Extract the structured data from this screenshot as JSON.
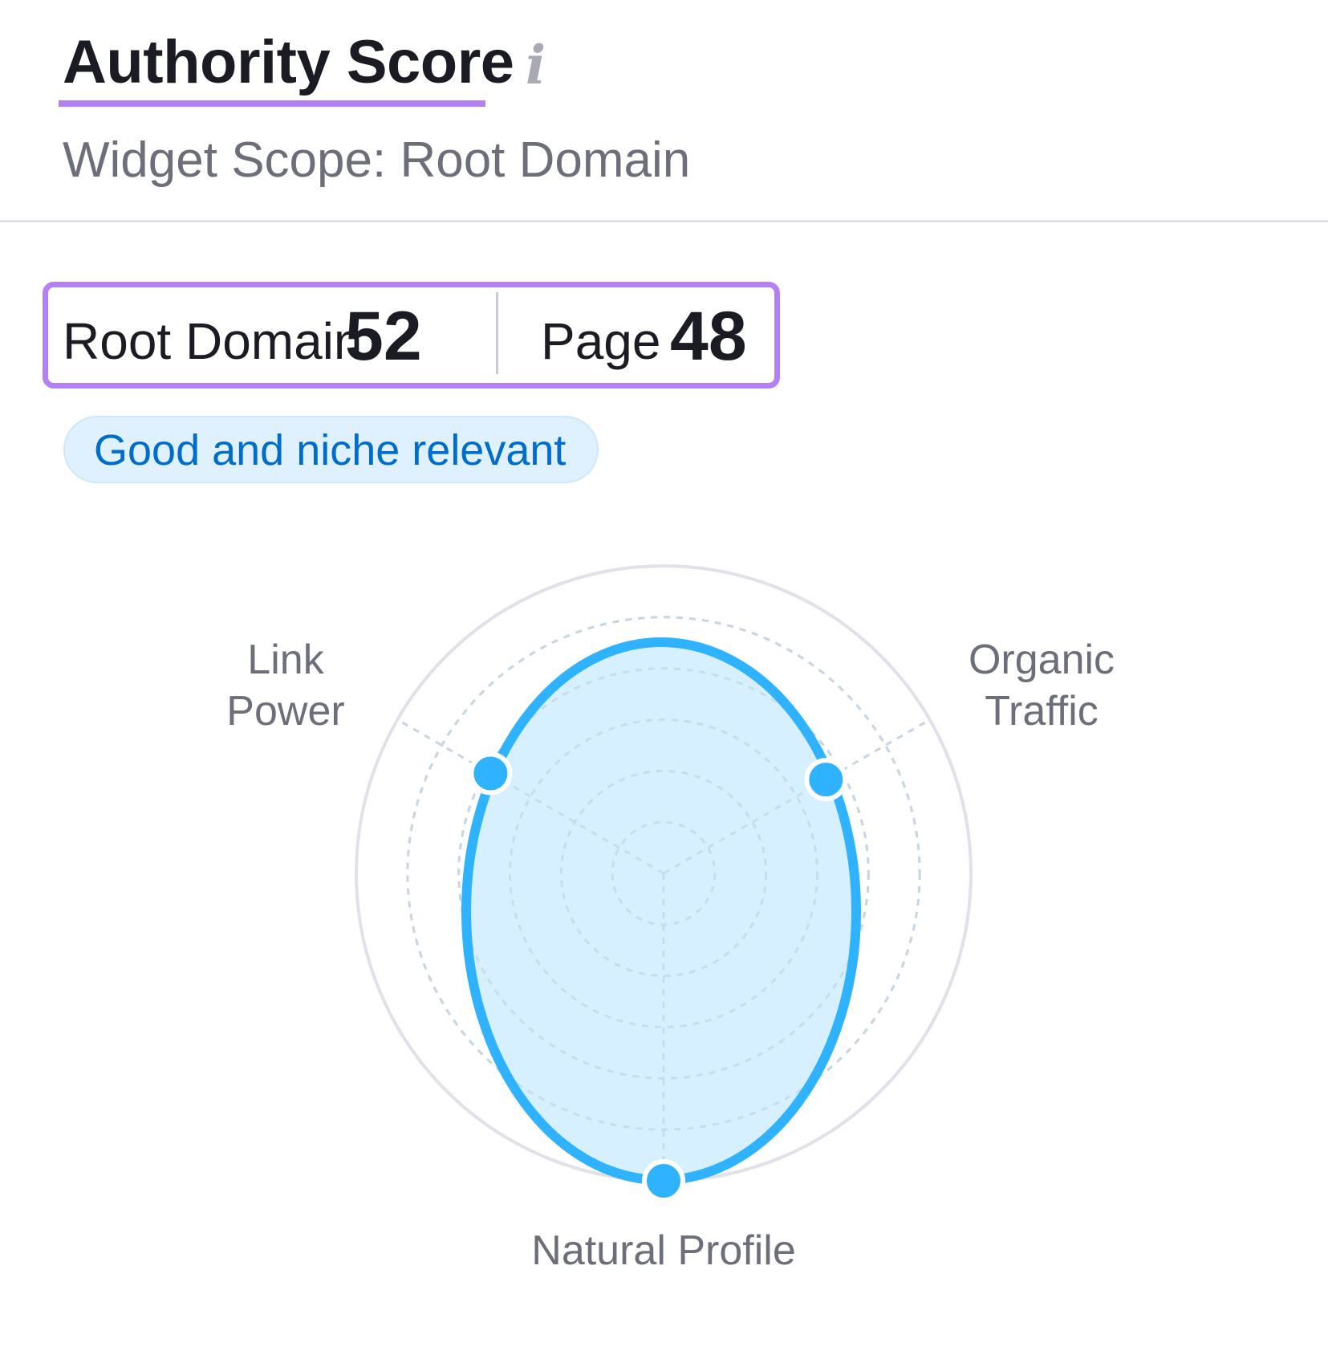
{
  "header": {
    "title": "Authority Score",
    "info_icon": "info-icon",
    "subtitle": "Widget Scope: Root Domain"
  },
  "scores": {
    "root_domain_label": "Root Domain",
    "root_domain_value": "52",
    "page_label": "Page",
    "page_value": "48"
  },
  "badge": {
    "text": "Good and niche relevant"
  },
  "colors": {
    "accent_purple": "#b57ff5",
    "badge_text": "#006dca",
    "badge_bg": "#dff0ff",
    "series_stroke": "#2fb2ff",
    "series_fill": "#d4efff"
  },
  "chart_data": {
    "type": "radar",
    "axes": [
      "Link Power",
      "Organic Traffic",
      "Natural Profile"
    ],
    "axis_labels": {
      "link_power": [
        "Link",
        "Power"
      ],
      "organic_traffic": [
        "Organic",
        "Traffic"
      ],
      "natural_profile": "Natural Profile"
    },
    "values": [
      65,
      61,
      100
    ],
    "range": [
      0,
      100
    ],
    "grid": "dashed concentric circles"
  }
}
